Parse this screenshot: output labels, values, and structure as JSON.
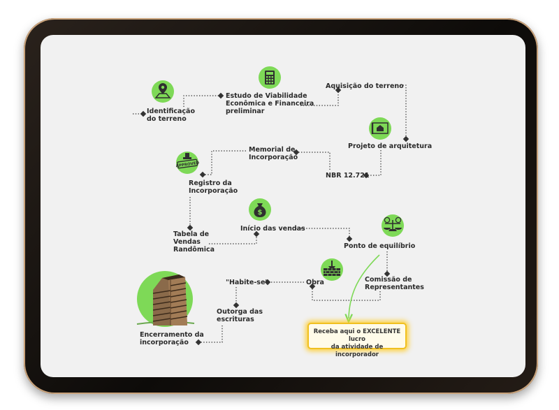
{
  "colors": {
    "icon_green": "#7ed957",
    "icon_dark": "#2f2f2f",
    "frame": "#1a1410",
    "screen": "#f1f1f1",
    "highlight": "#f5c518"
  },
  "steps": [
    {
      "id": "identificacao",
      "lines": [
        "Identificação",
        "do terreno"
      ],
      "icon": "map-pin-icon"
    },
    {
      "id": "estudo",
      "lines": [
        "Estudo de Viabilidade",
        "Econômica e Financeira",
        "preliminar"
      ],
      "icon": "calculator-icon"
    },
    {
      "id": "aquisicao",
      "lines": [
        "Aquisição do terreno"
      ]
    },
    {
      "id": "projeto",
      "lines": [
        "Projeto de arquitetura"
      ],
      "icon": "blueprint-house-icon"
    },
    {
      "id": "nbr",
      "lines": [
        "NBR 12.721"
      ]
    },
    {
      "id": "memorial",
      "lines": [
        "Memorial de",
        "Incorporação"
      ]
    },
    {
      "id": "registro",
      "lines": [
        "Registro da",
        "Incorporação"
      ],
      "icon": "approved-stamp-icon"
    },
    {
      "id": "tabela",
      "lines": [
        "Tabela de",
        "Vendas",
        "Randômica"
      ]
    },
    {
      "id": "inicio",
      "lines": [
        "Início das vendas"
      ],
      "icon": "money-bag-icon"
    },
    {
      "id": "ponto",
      "lines": [
        "Ponto de equilíbrio"
      ],
      "icon": "balance-scale-icon"
    },
    {
      "id": "comissao",
      "lines": [
        "Comissão de",
        "Representantes"
      ]
    },
    {
      "id": "obra",
      "lines": [
        "Obra"
      ],
      "icon": "brick-wall-icon"
    },
    {
      "id": "habite",
      "lines": [
        "\"Habite-se\""
      ]
    },
    {
      "id": "outorga",
      "lines": [
        "Outorga das",
        "escrituras"
      ]
    },
    {
      "id": "encerramento",
      "lines": [
        "Encerramento da",
        "incorporação"
      ],
      "icon": "building-tower-icon"
    }
  ],
  "cta": {
    "lines": [
      "Receba aqui o EXCELENTE lucro",
      "da atividade de incorporador"
    ]
  }
}
